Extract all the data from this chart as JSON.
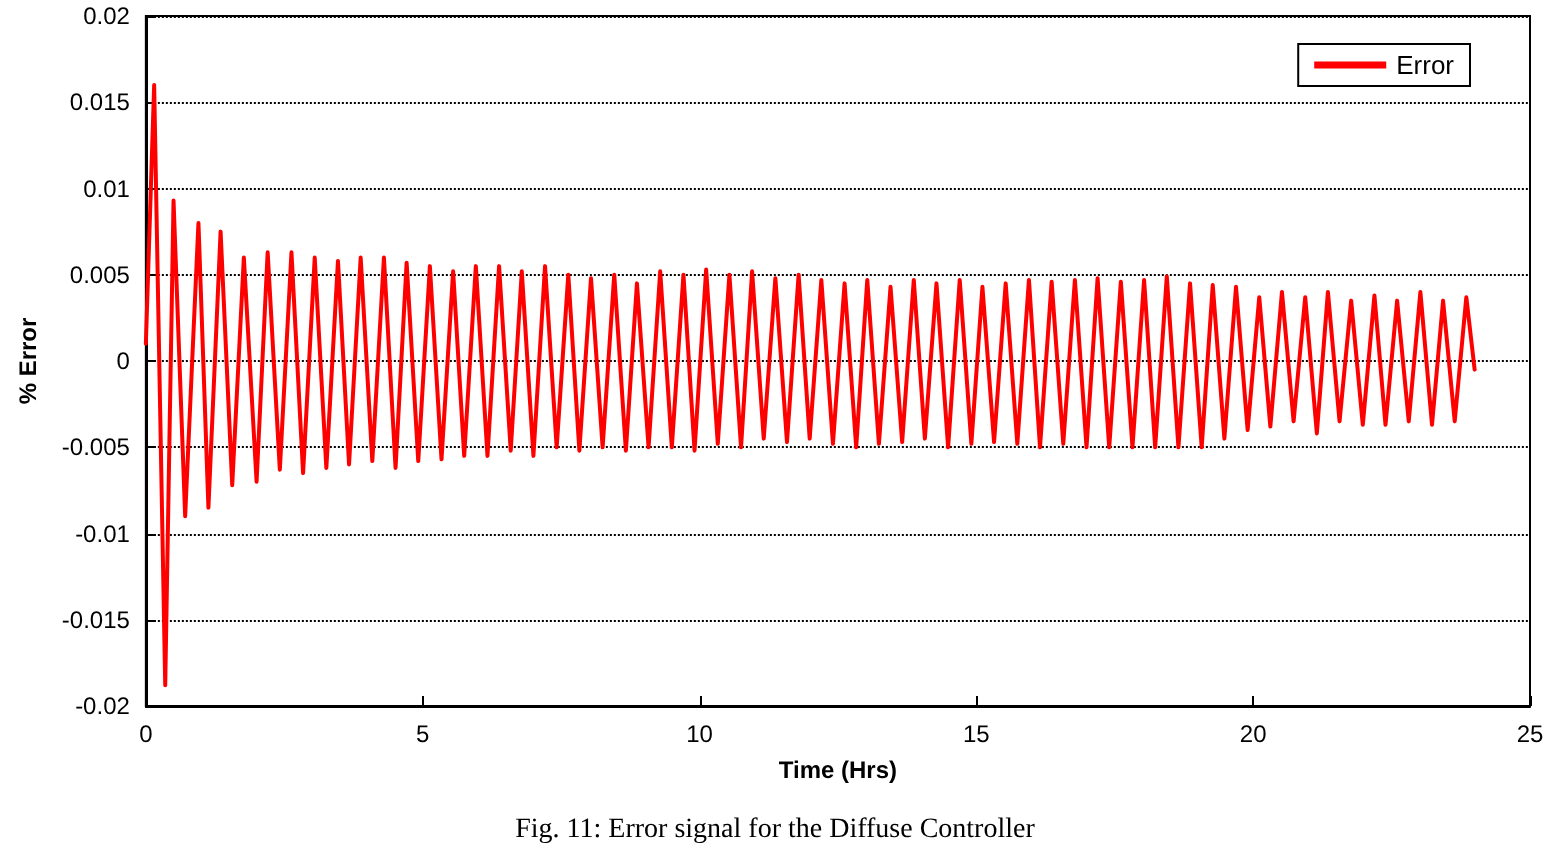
{
  "chart_data": {
    "type": "line",
    "xlabel": "Time (Hrs)",
    "ylabel": "% Error",
    "annotations": [
      "Fig. 11: Error signal for the Diffuse Controller"
    ],
    "xlim": [
      0,
      25
    ],
    "xticks": [
      0,
      5,
      10,
      15,
      20,
      25
    ],
    "ylim": [
      -0.02,
      0.02
    ],
    "yticks": [
      -0.02,
      -0.015,
      -0.01,
      -0.005,
      0,
      0.005,
      0.01,
      0.015,
      0.02
    ],
    "grid": "y",
    "legend": "top right",
    "marker": "none",
    "line_style": "solid",
    "series": [
      {
        "name": "Error",
        "color": "#ff0000",
        "x": [
          0,
          0.15,
          0.35,
          0.5,
          0.71,
          0.95,
          1.13,
          1.35,
          1.56,
          1.77,
          2.0,
          2.2,
          2.42,
          2.63,
          2.84,
          3.05,
          3.26,
          3.47,
          3.67,
          3.88,
          4.09,
          4.3,
          4.51,
          4.71,
          4.92,
          5.13,
          5.34,
          5.55,
          5.75,
          5.96,
          6.17,
          6.38,
          6.59,
          6.79,
          7.0,
          7.21,
          7.42,
          7.63,
          7.83,
          8.04,
          8.25,
          8.46,
          8.67,
          8.87,
          9.08,
          9.29,
          9.5,
          9.71,
          9.91,
          10.12,
          10.33,
          10.54,
          10.75,
          10.95,
          11.16,
          11.37,
          11.58,
          11.79,
          11.99,
          12.2,
          12.41,
          12.62,
          12.83,
          13.03,
          13.24,
          13.45,
          13.66,
          13.87,
          14.07,
          14.28,
          14.49,
          14.7,
          14.91,
          15.11,
          15.32,
          15.53,
          15.74,
          15.95,
          16.15,
          16.36,
          16.57,
          16.78,
          16.99,
          17.19,
          17.4,
          17.61,
          17.82,
          18.03,
          18.23,
          18.44,
          18.65,
          18.86,
          19.07,
          19.27,
          19.48,
          19.69,
          19.9,
          20.11,
          20.31,
          20.52,
          20.73,
          20.94,
          21.15,
          21.35,
          21.56,
          21.77,
          21.98,
          22.19,
          22.39,
          22.6,
          22.81,
          23.02,
          23.23,
          23.43,
          23.64,
          23.85,
          24.0
        ],
        "values": [
          0.001,
          0.016,
          -0.0188,
          0.0093,
          -0.009,
          0.008,
          -0.0085,
          0.0075,
          -0.0072,
          0.006,
          -0.007,
          0.0063,
          -0.0063,
          0.0063,
          -0.0065,
          0.006,
          -0.0062,
          0.0058,
          -0.006,
          0.006,
          -0.0058,
          0.006,
          -0.0062,
          0.0057,
          -0.0058,
          0.0055,
          -0.0057,
          0.0052,
          -0.0055,
          0.0055,
          -0.0055,
          0.0055,
          -0.0052,
          0.0052,
          -0.0055,
          0.0055,
          -0.005,
          0.005,
          -0.0052,
          0.0048,
          -0.005,
          0.005,
          -0.0052,
          0.0045,
          -0.005,
          0.0052,
          -0.005,
          0.005,
          -0.0052,
          0.0053,
          -0.0048,
          0.005,
          -0.005,
          0.0052,
          -0.0045,
          0.0048,
          -0.0047,
          0.005,
          -0.0045,
          0.0047,
          -0.0048,
          0.0045,
          -0.005,
          0.0047,
          -0.0048,
          0.0043,
          -0.0047,
          0.0047,
          -0.0045,
          0.0045,
          -0.005,
          0.0047,
          -0.0048,
          0.0043,
          -0.0047,
          0.0045,
          -0.0048,
          0.0047,
          -0.005,
          0.0046,
          -0.0048,
          0.0047,
          -0.005,
          0.0048,
          -0.005,
          0.0046,
          -0.005,
          0.0047,
          -0.005,
          0.0049,
          -0.005,
          0.0045,
          -0.005,
          0.0044,
          -0.0045,
          0.0043,
          -0.004,
          0.0037,
          -0.0038,
          0.004,
          -0.0035,
          0.0037,
          -0.0042,
          0.004,
          -0.0035,
          0.0035,
          -0.0037,
          0.0038,
          -0.0037,
          0.0035,
          -0.0035,
          0.004,
          -0.0037,
          0.0035,
          -0.0035,
          0.0037,
          -0.0005
        ]
      }
    ]
  }
}
